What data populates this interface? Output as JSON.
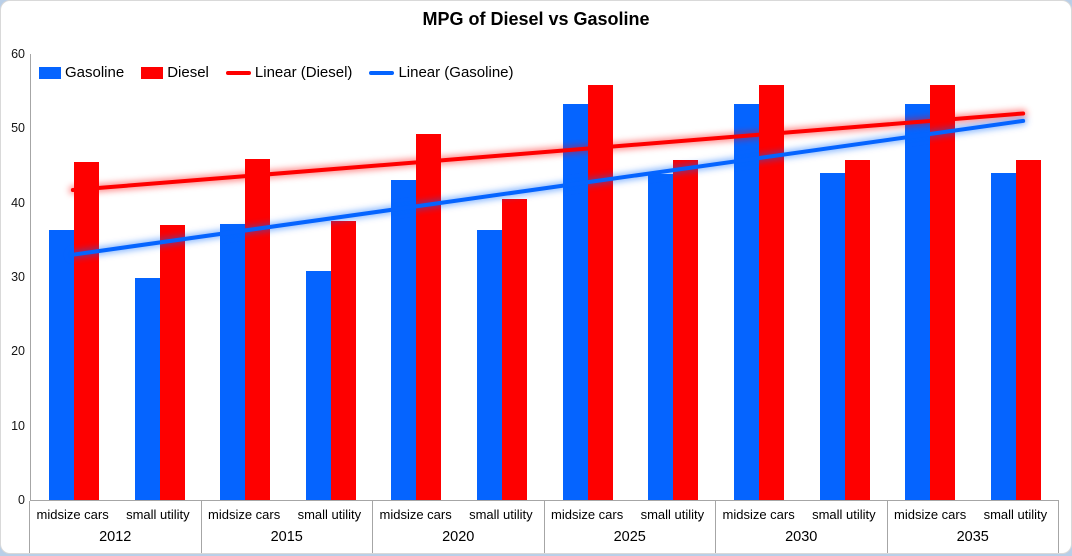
{
  "chart_data": {
    "type": "bar",
    "title": "MPG of Diesel vs Gasoline",
    "xlabel": "",
    "ylabel": "",
    "ylim": [
      0,
      60
    ],
    "yticks": [
      0,
      10,
      20,
      30,
      40,
      50,
      60
    ],
    "gridlines": false,
    "legend_position": "top-left inside plot, horizontal",
    "years": [
      "2012",
      "2015",
      "2020",
      "2025",
      "2030",
      "2035"
    ],
    "subcategories": [
      "midsize cars",
      "small utility"
    ],
    "categories": [
      "2012 midsize cars",
      "2012 small utility",
      "2015 midsize cars",
      "2015 small utility",
      "2020 midsize cars",
      "2020 small utility",
      "2025 midsize cars",
      "2025 small utility",
      "2030 midsize cars",
      "2030 small utility",
      "2035 midsize cars",
      "2035 small utility"
    ],
    "series": [
      {
        "name": "Gasoline",
        "color": "#0564ff",
        "values": [
          36.3,
          29.9,
          37.1,
          30.8,
          43.1,
          36.3,
          53.3,
          43.8,
          53.3,
          44.0,
          53.3,
          44.0
        ]
      },
      {
        "name": "Diesel",
        "color": "#fe0000",
        "values": [
          45.5,
          37.0,
          45.9,
          37.6,
          49.2,
          40.5,
          55.8,
          45.8,
          55.8,
          45.8,
          55.8,
          45.8
        ]
      }
    ],
    "trendlines": [
      {
        "name": "Linear (Diesel)",
        "color": "#fe0000",
        "start_value": 41.7,
        "end_value": 52.0
      },
      {
        "name": "Linear (Gasoline)",
        "color": "#0564ff",
        "start_value": 33.0,
        "end_value": 51.0
      }
    ],
    "legend": [
      {
        "label": "Gasoline",
        "swatch": "rect",
        "color": "#0564ff"
      },
      {
        "label": "Diesel",
        "swatch": "rect",
        "color": "#fe0000"
      },
      {
        "label": "Linear (Diesel)",
        "swatch": "line",
        "color": "#fe0000"
      },
      {
        "label": "Linear (Gasoline)",
        "swatch": "line",
        "color": "#0564ff"
      }
    ],
    "colors": {
      "axis_line": "#a6a6a6",
      "text": "#000000",
      "plot_background": "#ffffff",
      "outer_background": "#b9cfe8"
    }
  }
}
